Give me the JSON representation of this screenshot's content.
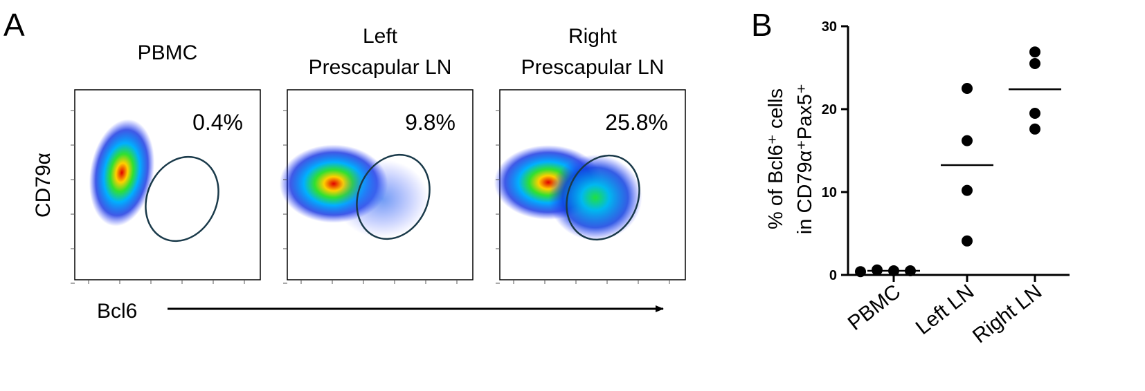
{
  "panel_a": {
    "label": "A",
    "y_label": "CD79α",
    "x_label": "Bcl6",
    "plots": [
      {
        "title": [
          "PBMC"
        ],
        "gate_label": "0.4%"
      },
      {
        "title": [
          "Left",
          "Prescapular LN"
        ],
        "gate_label": "9.8%"
      },
      {
        "title": [
          "Right",
          "Prescapular LN"
        ],
        "gate_label": "25.8%"
      }
    ]
  },
  "chart_data": {
    "type": "dotplot",
    "panel_label": "B",
    "y_label": [
      "% of Bcl6⁺ cells",
      "in CD79α⁺Pax5⁺"
    ],
    "categories": [
      "PBMC",
      "Left LN",
      "Right LN"
    ],
    "values": [
      [
        0.4,
        0.6,
        0.5,
        0.5
      ],
      [
        22.5,
        16.2,
        10.2,
        4.1
      ],
      [
        26.9,
        25.5,
        19.5,
        17.6
      ]
    ],
    "means": [
      0.5,
      13.25,
      22.4
    ],
    "color": "#000000",
    "ylim": [
      0,
      30
    ],
    "yticks": [
      0,
      10,
      20,
      30
    ]
  }
}
